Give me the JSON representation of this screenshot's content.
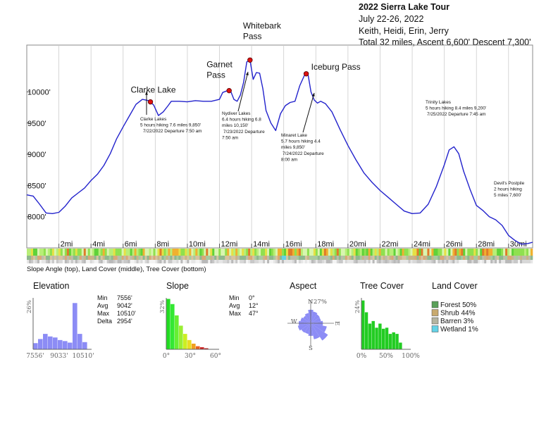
{
  "header": {
    "title": "2022 Sierra Lake Tour",
    "dates": "July 22-26, 2022",
    "people": "Keith, Heidi, Erin, Jerry",
    "summary": "Total 32 miles, Ascent 6,600' Descent 7,300'"
  },
  "chart_data": [
    {
      "type": "line",
      "name": "elevation-profile",
      "x_unit": "mi",
      "y_unit": "ft",
      "xlim": [
        0,
        31.5
      ],
      "ylim": [
        7500,
        10750
      ],
      "x_ticks": [
        2,
        4,
        6,
        8,
        10,
        12,
        14,
        16,
        18,
        20,
        22,
        24,
        26,
        28,
        30
      ],
      "x_tick_labels": [
        "2mi",
        "4mi",
        "6mi",
        "8mi",
        "10mi",
        "12mi",
        "14mi",
        "16mi",
        "18mi",
        "20mi",
        "22mi",
        "24mi",
        "26mi",
        "28mi",
        "30mi"
      ],
      "y_ticks": [
        8000,
        8500,
        9000,
        9500,
        10000
      ],
      "y_tick_labels": [
        "8000'",
        "8500'",
        "9000'",
        "9500'",
        "10000'"
      ],
      "grid": "vertical",
      "x": [
        0,
        0.4,
        0.8,
        1.2,
        1.6,
        2.0,
        2.4,
        2.8,
        3.2,
        3.6,
        4.0,
        4.4,
        4.8,
        5.2,
        5.6,
        6.0,
        6.4,
        6.8,
        7.2,
        7.6,
        7.9,
        8.2,
        8.5,
        8.8,
        9.0,
        9.5,
        10.0,
        10.5,
        11.0,
        11.5,
        12.0,
        12.2,
        12.5,
        12.7,
        12.9,
        13.1,
        13.3,
        13.5,
        13.7,
        13.9,
        14.1,
        14.3,
        14.5,
        14.7,
        14.9,
        15.2,
        15.5,
        15.8,
        16.1,
        16.4,
        16.7,
        17.0,
        17.3,
        17.5,
        17.7,
        17.9,
        18.1,
        18.3,
        18.6,
        19.0,
        19.5,
        20.0,
        20.5,
        21.0,
        21.5,
        22.0,
        22.5,
        23.0,
        23.5,
        24.0,
        24.5,
        25.0,
        25.5,
        26.0,
        26.3,
        26.6,
        26.9,
        27.2,
        27.6,
        28.0,
        28.4,
        28.8,
        29.2,
        29.6,
        30.0,
        30.4,
        30.8,
        31.2,
        31.5
      ],
      "y": [
        8350,
        8330,
        8200,
        8060,
        8050,
        8070,
        8170,
        8300,
        8380,
        8460,
        8580,
        8680,
        8820,
        9010,
        9250,
        9440,
        9620,
        9800,
        9880,
        9860,
        9790,
        9620,
        9680,
        9780,
        9850,
        9850,
        9840,
        9860,
        9850,
        9850,
        9880,
        9990,
        10020,
        10010,
        9880,
        9850,
        9950,
        10150,
        10480,
        10510,
        10200,
        10310,
        10300,
        10050,
        9700,
        9500,
        9380,
        9650,
        9780,
        9830,
        9850,
        10100,
        10270,
        10300,
        10000,
        9870,
        9820,
        9850,
        9810,
        9680,
        9400,
        9140,
        8910,
        8700,
        8550,
        8420,
        8310,
        8200,
        8090,
        8050,
        8060,
        8200,
        8480,
        8830,
        9070,
        9120,
        9010,
        8730,
        8440,
        8180,
        8100,
        8000,
        7950,
        7860,
        7700,
        7620,
        7560,
        7570,
        7590
      ],
      "annotations": [
        {
          "kind": "label",
          "lines": [
            "Clarke Lake"
          ],
          "x": 7.7,
          "y": 9840
        },
        {
          "kind": "label",
          "lines": [
            "Garnet",
            "Pass"
          ],
          "x": 12.6,
          "y": 10020
        },
        {
          "kind": "label",
          "lines": [
            "Whitebark",
            "Pass"
          ],
          "x": 13.9,
          "y": 10510
        },
        {
          "kind": "label",
          "lines": [
            "Iceburg Pass"
          ],
          "x": 17.4,
          "y": 10290
        },
        {
          "kind": "note",
          "lines": [
            "Clarke Lakes",
            "5 hours hiking 7.6 miles 9,850'",
            "7/22/2022 Departure 7:50 am"
          ]
        },
        {
          "kind": "note",
          "lines": [
            "Nydiver Lakes",
            "6.4 hours hiking 6.8",
            "miles 10,150'",
            "7/23/2022 Departure",
            "7:50 am"
          ]
        },
        {
          "kind": "note",
          "lines": [
            "Minaret Lake",
            "5.7 hours hiking 4.4",
            "miles 9,850'",
            "7/24/2022 Departure",
            "8:00 am"
          ]
        },
        {
          "kind": "note",
          "lines": [
            "Trinity Lakes",
            "5 hours hiking 8.4 miles 9,200'",
            "7/25/2022 Departure 7:45 am"
          ]
        },
        {
          "kind": "note",
          "lines": [
            "Devil's Postpile",
            "2 hours hiking",
            "5 miles 7,600'"
          ]
        }
      ],
      "strip_caption": "Slope Angle (top), Land Cover (middle), Tree Cover (bottom)"
    },
    {
      "type": "bar",
      "name": "elevation-histogram",
      "title": "Elevation",
      "y_axis_label": "26%",
      "x_tick_labels": [
        "7556'",
        "9033'",
        "10510'"
      ],
      "values": [
        0.12,
        0.2,
        0.3,
        0.25,
        0.23,
        0.18,
        0.16,
        0.13,
        0.9,
        0.3,
        0.14
      ],
      "color": "#8c8cf5",
      "stats": [
        [
          "Min",
          "7556'"
        ],
        [
          "Avg",
          "9042'"
        ],
        [
          "Max",
          "10510'"
        ],
        [
          "Delta",
          "2954'"
        ]
      ]
    },
    {
      "type": "bar",
      "name": "slope-histogram",
      "title": "Slope",
      "y_axis_label": "32%",
      "x_tick_labels": [
        "0°",
        "30°",
        "60°"
      ],
      "values": [
        0.98,
        0.88,
        0.66,
        0.46,
        0.3,
        0.18,
        0.11,
        0.06,
        0.04,
        0.02
      ],
      "colors": [
        "#22dd22",
        "#33e833",
        "#66ee33",
        "#99ee33",
        "#ccee22",
        "#e8dd22",
        "#f0a020",
        "#e86020",
        "#cc2020",
        "#bb1111"
      ],
      "stats": [
        [
          "Min",
          "0°"
        ],
        [
          "Avg",
          "12°"
        ],
        [
          "Max",
          "47°"
        ]
      ]
    },
    {
      "type": "pie",
      "name": "aspect-rose",
      "title": "Aspect",
      "axis_label": "27%",
      "directions": [
        "N",
        "E",
        "S",
        "W"
      ],
      "sector_values": [
        0.62,
        0.55,
        0.5,
        0.48,
        0.56,
        0.75,
        0.95,
        0.75,
        0.58,
        0.5,
        0.52,
        0.6,
        0.55,
        0.48,
        0.42,
        0.48
      ],
      "color": "#8c8cf5"
    },
    {
      "type": "bar",
      "name": "tree-cover-histogram",
      "title": "Tree Cover",
      "y_axis_label": "24%",
      "x_tick_labels": [
        "0%",
        "50%",
        "100%"
      ],
      "values": [
        0.95,
        0.72,
        0.5,
        0.55,
        0.42,
        0.5,
        0.4,
        0.42,
        0.3,
        0.33,
        0.3,
        0.13
      ],
      "color": "#22cc22"
    }
  ],
  "land_cover": {
    "title": "Land Cover",
    "items": [
      {
        "label": "Forest 50%",
        "color": "#5aa05a"
      },
      {
        "label": "Shrub 44%",
        "color": "#c8aa6e"
      },
      {
        "label": "Barren 3%",
        "color": "#b4b4a0"
      },
      {
        "label": "Wetland 1%",
        "color": "#64d2e6"
      }
    ]
  },
  "colors": {
    "profile_line": "#2222cc",
    "marker": "#dd1111",
    "axis": "#888888",
    "grid": "#cccccc"
  }
}
